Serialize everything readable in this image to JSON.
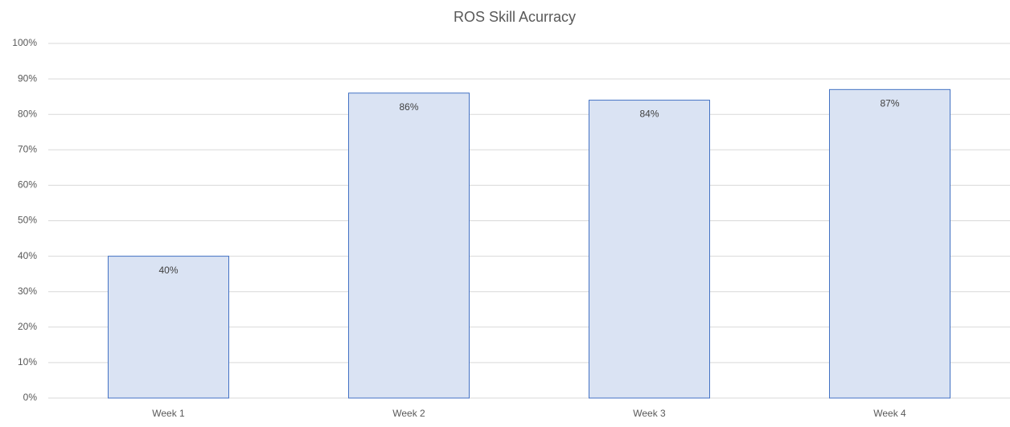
{
  "chart_data": {
    "type": "bar",
    "title": "ROS Skill Acurracy",
    "categories": [
      "Week 1",
      "Week 2",
      "Week 3",
      "Week 4"
    ],
    "values": [
      40,
      86,
      84,
      87
    ],
    "value_labels": [
      "40%",
      "86%",
      "84%",
      "87%"
    ],
    "color": "#dae3f3",
    "edge_color": "#4472c4",
    "ylim": [
      0,
      100
    ],
    "yticks": [
      {
        "value": 0,
        "label": "0%"
      },
      {
        "value": 10,
        "label": "10%"
      },
      {
        "value": 20,
        "label": "20%"
      },
      {
        "value": 30,
        "label": "30%"
      },
      {
        "value": 40,
        "label": "40%"
      },
      {
        "value": 50,
        "label": "50%"
      },
      {
        "value": 60,
        "label": "60%"
      },
      {
        "value": 70,
        "label": "70%"
      },
      {
        "value": 80,
        "label": "80%"
      },
      {
        "value": 90,
        "label": "90%"
      },
      {
        "value": 100,
        "label": "100%"
      }
    ],
    "grid": true
  }
}
